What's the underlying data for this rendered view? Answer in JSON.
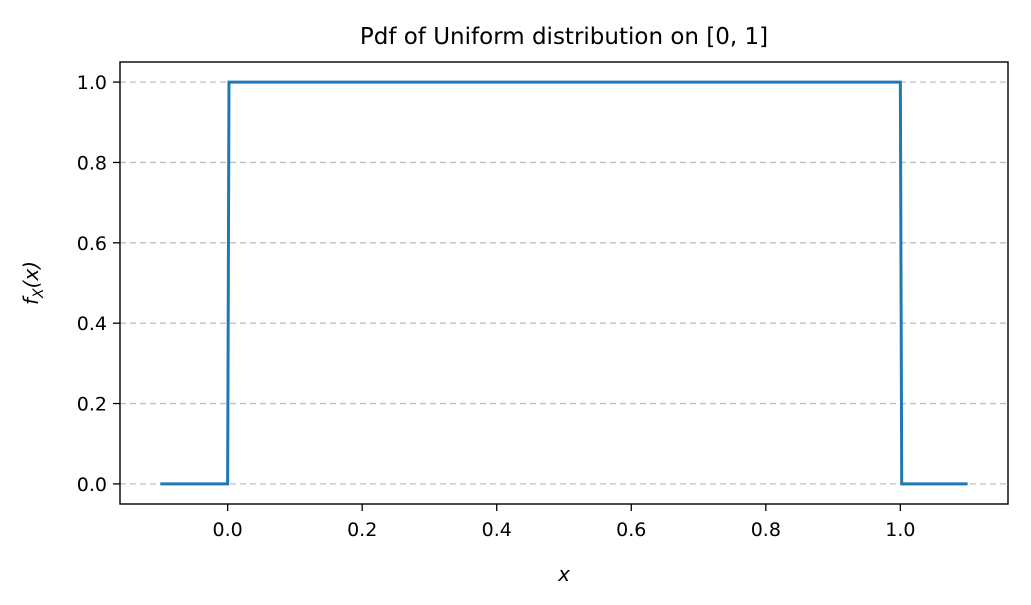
{
  "chart_data": {
    "type": "line",
    "title": "Pdf of Uniform distribution on [0, 1]",
    "xlabel": "x",
    "ylabel": "f_X(x)",
    "xlim": [
      -0.16,
      1.16
    ],
    "ylim": [
      -0.05,
      1.05
    ],
    "x_ticks": [
      "0.0",
      "0.2",
      "0.4",
      "0.6",
      "0.8",
      "1.0"
    ],
    "x_tick_values": [
      0.0,
      0.2,
      0.4,
      0.6,
      0.8,
      1.0
    ],
    "y_ticks": [
      "0.0",
      "0.2",
      "0.4",
      "0.6",
      "0.8",
      "1.0"
    ],
    "y_tick_values": [
      0.0,
      0.2,
      0.4,
      0.6,
      0.8,
      1.0
    ],
    "grid": "y-dashed",
    "series": [
      {
        "color": "#1f77b4",
        "x": [
          -0.1,
          0.0,
          0.002,
          1.0,
          1.002,
          1.1
        ],
        "y": [
          0.0,
          0.0,
          1.0,
          1.0,
          0.0,
          0.0
        ]
      }
    ]
  }
}
